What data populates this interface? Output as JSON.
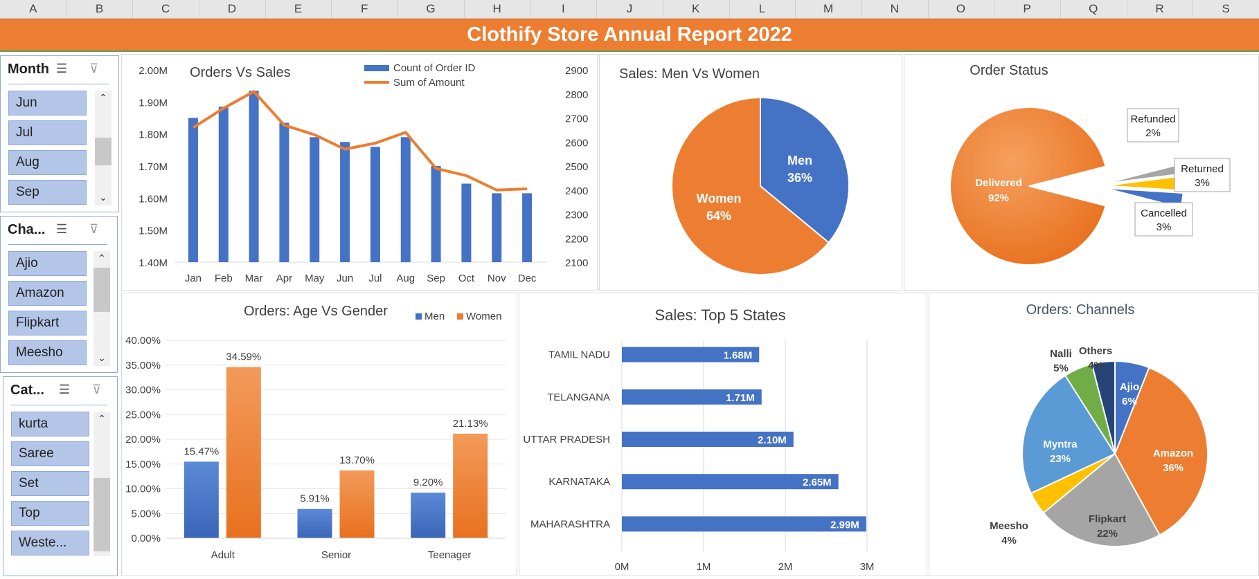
{
  "spreadsheet": {
    "columns": [
      "A",
      "B",
      "C",
      "D",
      "E",
      "F",
      "G",
      "H",
      "I",
      "J",
      "K",
      "L",
      "M",
      "N",
      "O",
      "P",
      "Q",
      "R",
      "S"
    ],
    "title": "Clothify Store Annual Report 2022"
  },
  "colors": {
    "blue": "#4472c4",
    "orange": "#ed7d31",
    "gray": "#a5a5a5",
    "yellow": "#ffc000",
    "lightblue": "#5b9bd5",
    "green": "#70ad47",
    "navy": "#264478",
    "title_bg": "#ed7d31"
  },
  "slicers": [
    {
      "header": "Month",
      "items": [
        "Jun",
        "Jul",
        "Aug",
        "Sep"
      ]
    },
    {
      "header": "Cha...",
      "items": [
        "Ajio",
        "Amazon",
        "Flipkart",
        "Meesho"
      ]
    },
    {
      "header": "Cat...",
      "items": [
        "kurta",
        "Saree",
        "Set",
        "Top",
        "Weste..."
      ]
    }
  ],
  "slicer_icons": {
    "multiselect": "multi-select-icon",
    "clear": "clear-filter-icon"
  },
  "chart_data": [
    {
      "type": "bar",
      "title": "Orders Vs Sales",
      "categories": [
        "Jan",
        "Feb",
        "Mar",
        "Apr",
        "May",
        "Jun",
        "Jul",
        "Aug",
        "Sep",
        "Oct",
        "Nov",
        "Dec"
      ],
      "series": [
        {
          "name": "Count of Order ID",
          "type": "bar",
          "axis": "left",
          "values": [
            1850000,
            1885000,
            1935000,
            1835000,
            1790000,
            1775000,
            1760000,
            1790000,
            1700000,
            1645000,
            1615000,
            1615000
          ]
        },
        {
          "name": "Sum of Amount",
          "type": "line",
          "axis": "right",
          "values": [
            2660,
            2740,
            2810,
            2670,
            2630,
            2570,
            2595,
            2640,
            2490,
            2460,
            2400,
            2405
          ]
        }
      ],
      "ylim_left": [
        1400000,
        2000000
      ],
      "ylim_right": [
        2100,
        2900
      ],
      "y_left_ticks": [
        "2.00M",
        "1.90M",
        "1.80M",
        "1.70M",
        "1.60M",
        "1.50M",
        "1.40M"
      ],
      "y_right_ticks": [
        "2900",
        "2800",
        "2700",
        "2600",
        "2500",
        "2400",
        "2300",
        "2200",
        "2100"
      ],
      "legend": "top"
    },
    {
      "type": "pie",
      "title": "Sales: Men Vs Women",
      "labels": [
        "Men",
        "Women"
      ],
      "values": [
        36,
        64
      ],
      "value_labels": [
        "36%",
        "64%"
      ]
    },
    {
      "type": "pie",
      "title": "Order Status",
      "labels": [
        "Delivered",
        "Refunded",
        "Returned",
        "Cancelled"
      ],
      "values": [
        92,
        2,
        3,
        3
      ],
      "value_labels": [
        "92%",
        "2%",
        "3%",
        "3%"
      ]
    },
    {
      "type": "bar",
      "title": "Orders: Age Vs Gender",
      "categories": [
        "Adult",
        "Senior",
        "Teenager"
      ],
      "series": [
        {
          "name": "Men",
          "values": [
            15.47,
            5.91,
            9.2
          ],
          "labels": [
            "15.47%",
            "5.91%",
            "9.20%"
          ]
        },
        {
          "name": "Women",
          "values": [
            34.59,
            13.7,
            21.13
          ],
          "labels": [
            "34.59%",
            "13.70%",
            "21.13%"
          ]
        }
      ],
      "ylim": [
        0,
        40
      ],
      "y_ticks": [
        "40.00%",
        "35.00%",
        "30.00%",
        "25.00%",
        "20.00%",
        "15.00%",
        "10.00%",
        "5.00%",
        "0.00%"
      ],
      "legend": "top-right"
    },
    {
      "type": "bar",
      "orientation": "horizontal",
      "title": "Sales: Top 5 States",
      "categories": [
        "TAMIL NADU",
        "TELANGANA",
        "UTTAR PRADESH",
        "KARNATAKA",
        "MAHARASHTRA"
      ],
      "values": [
        1.68,
        1.71,
        2.1,
        2.65,
        2.99
      ],
      "labels": [
        "1.68M",
        "1.71M",
        "2.10M",
        "2.65M",
        "2.99M"
      ],
      "xlim": [
        0,
        3
      ],
      "x_ticks": [
        "0M",
        "1M",
        "2M",
        "3M"
      ]
    },
    {
      "type": "pie",
      "title": "Orders: Channels",
      "labels": [
        "Ajio",
        "Amazon",
        "Flipkart",
        "Meesho",
        "Myntra",
        "Nalli",
        "Others"
      ],
      "values": [
        6,
        36,
        22,
        4,
        23,
        5,
        4
      ],
      "value_labels": [
        "6%",
        "36%",
        "22%",
        "4%",
        "23%",
        "5%",
        "4%"
      ]
    }
  ]
}
